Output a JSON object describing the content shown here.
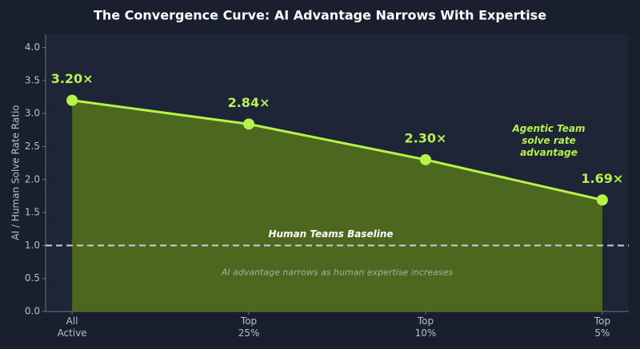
{
  "chart_data": {
    "type": "area-line",
    "title": "The Convergence Curve: AI Advantage Narrows With Expertise",
    "y_label": "AI / Human Solve Rate Ratio",
    "categories": [
      "All\nActive",
      "Top\n25%",
      "Top\n10%",
      "Top\n5%"
    ],
    "x": [
      0,
      1,
      2,
      3
    ],
    "xlim": [
      -0.15,
      3.15
    ],
    "series": [
      {
        "name": "Agentic Team\nsolve rate advantage",
        "color": "#b5f24a",
        "fill": "#4f6a1d",
        "values": [
          3.2,
          2.84,
          2.3,
          1.69
        ],
        "value_labels": [
          "3.20×",
          "2.84×",
          "2.30×",
          "1.69×"
        ]
      }
    ],
    "ylim": [
      0,
      4.2
    ],
    "yticks": [
      {
        "value": 0,
        "label": "0.0"
      },
      0.5,
      {
        "value": 1,
        "label": "1.0"
      },
      1.5,
      {
        "value": 2,
        "label": "2.0"
      },
      2.5,
      {
        "value": 3,
        "label": "3.0"
      },
      3.5,
      {
        "value": 4,
        "label": "4.0"
      }
    ],
    "baseline": {
      "value": 1,
      "label": "Human Teams Baseline",
      "color": "#c8cdd8"
    },
    "annotation": "AI advantage narrows as human expertise increases"
  }
}
